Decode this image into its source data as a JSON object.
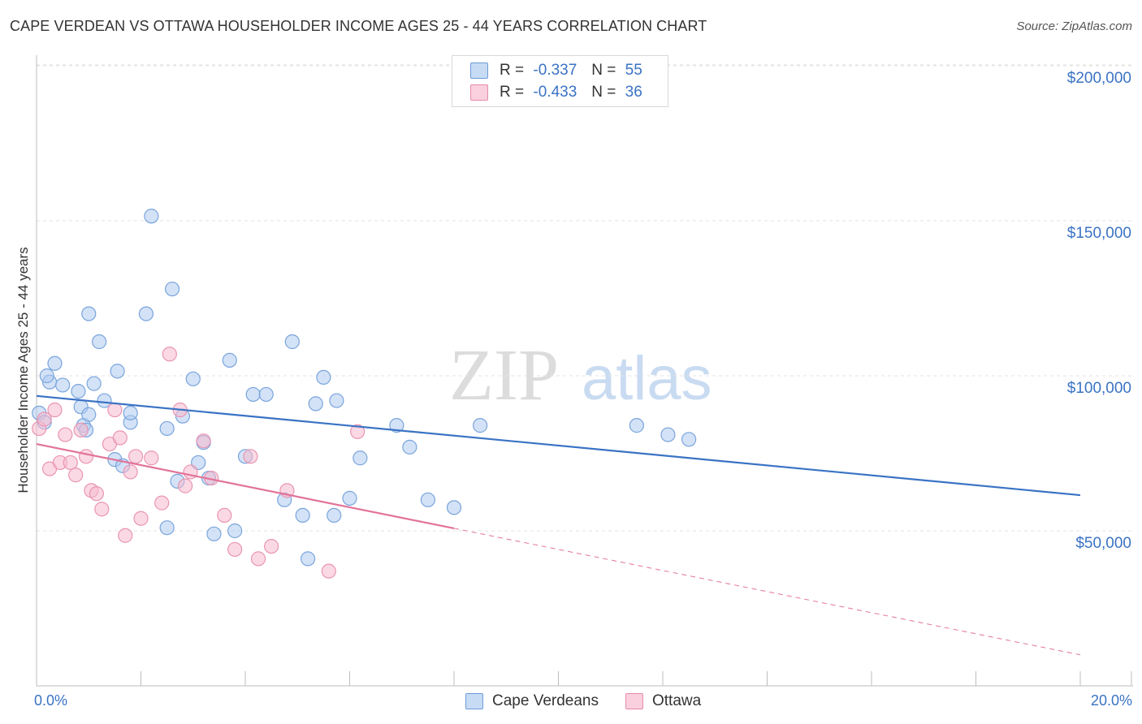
{
  "title": "CAPE VERDEAN VS OTTAWA HOUSEHOLDER INCOME AGES 25 - 44 YEARS CORRELATION CHART",
  "source": "Source: ZipAtlas.com",
  "watermark": {
    "zip": "ZIP",
    "atlas": "atlas"
  },
  "colors": {
    "blue": "#3a73c4",
    "blue_fill": "#aecbf0",
    "pink": "#e27399",
    "pink_fill": "#f7b9cd",
    "grid": "#e3e3e3"
  },
  "legend": {
    "rows": [
      {
        "r_label": "R =",
        "r_value": "-0.337",
        "n_label": "N =",
        "n_value": "55"
      },
      {
        "r_label": "R =",
        "r_value": "-0.433",
        "n_label": "N =",
        "n_value": "36"
      }
    ]
  },
  "bottom_legend": [
    "Cape Verdeans",
    "Ottawa"
  ],
  "chart_data": {
    "type": "scatter",
    "title": "CAPE VERDEAN VS OTTAWA HOUSEHOLDER INCOME AGES 25 - 44 YEARS CORRELATION CHART",
    "xlabel": "",
    "ylabel": "Householder Income Ages 25 - 44 years",
    "xlim": [
      0,
      20
    ],
    "ylim": [
      0,
      210000
    ],
    "x_tick_labels": [
      "0.0%",
      "20.0%"
    ],
    "y_ticks": [
      50000,
      100000,
      150000,
      200000
    ],
    "y_tick_labels": [
      "$50,000",
      "$100,000",
      "$150,000",
      "$200,000"
    ],
    "grid": true,
    "legend_position": "top-center",
    "series": [
      {
        "name": "Cape Verdeans",
        "color": "#3a73c4",
        "r": -0.337,
        "n": 55,
        "trend": {
          "x0": 0,
          "y0": 93500,
          "x1": 20,
          "y1": 61500,
          "dashed_from": null
        },
        "points": [
          [
            0.05,
            88000
          ],
          [
            0.15,
            85000
          ],
          [
            0.25,
            98000
          ],
          [
            0.35,
            104000
          ],
          [
            0.5,
            97000
          ],
          [
            0.2,
            100000
          ],
          [
            0.8,
            95000
          ],
          [
            0.85,
            90000
          ],
          [
            0.9,
            84000
          ],
          [
            1.0,
            87500
          ],
          [
            1.1,
            97500
          ],
          [
            1.2,
            111000
          ],
          [
            1.3,
            92000
          ],
          [
            1.5,
            73000
          ],
          [
            1.55,
            101500
          ],
          [
            1.65,
            71000
          ],
          [
            1.8,
            85000
          ],
          [
            1.8,
            88000
          ],
          [
            2.1,
            120000
          ],
          [
            2.2,
            151500
          ],
          [
            2.5,
            83000
          ],
          [
            2.6,
            128000
          ],
          [
            2.8,
            87000
          ],
          [
            2.7,
            66000
          ],
          [
            2.5,
            51000
          ],
          [
            3.0,
            99000
          ],
          [
            3.1,
            72000
          ],
          [
            3.2,
            78500
          ],
          [
            3.3,
            67000
          ],
          [
            3.4,
            49000
          ],
          [
            3.7,
            105000
          ],
          [
            3.8,
            50000
          ],
          [
            4.0,
            74000
          ],
          [
            4.15,
            94000
          ],
          [
            4.4,
            94000
          ],
          [
            4.75,
            60000
          ],
          [
            4.9,
            111000
          ],
          [
            5.1,
            55000
          ],
          [
            5.2,
            41000
          ],
          [
            5.35,
            91000
          ],
          [
            5.5,
            99500
          ],
          [
            5.7,
            55000
          ],
          [
            5.75,
            92000
          ],
          [
            6.0,
            60500
          ],
          [
            6.2,
            73500
          ],
          [
            6.9,
            84000
          ],
          [
            7.15,
            77000
          ],
          [
            7.5,
            60000
          ],
          [
            8.0,
            57500
          ],
          [
            8.5,
            84000
          ],
          [
            11.5,
            84000
          ],
          [
            12.1,
            81000
          ],
          [
            12.5,
            79500
          ],
          [
            0.95,
            82500
          ],
          [
            1.0,
            120000
          ]
        ]
      },
      {
        "name": "Ottawa",
        "color": "#e27399",
        "r": -0.433,
        "n": 36,
        "trend": {
          "x0": 0,
          "y0": 78000,
          "x1": 20,
          "y1": 10000,
          "dashed_from": 8.0
        },
        "points": [
          [
            0.05,
            83000
          ],
          [
            0.15,
            86000
          ],
          [
            0.25,
            70000
          ],
          [
            0.35,
            89000
          ],
          [
            0.45,
            72000
          ],
          [
            0.55,
            81000
          ],
          [
            0.65,
            72000
          ],
          [
            0.75,
            68000
          ],
          [
            0.85,
            82500
          ],
          [
            0.95,
            74000
          ],
          [
            1.05,
            63000
          ],
          [
            1.15,
            62000
          ],
          [
            1.25,
            57000
          ],
          [
            1.4,
            78000
          ],
          [
            1.5,
            89000
          ],
          [
            1.6,
            80000
          ],
          [
            1.7,
            48500
          ],
          [
            1.8,
            69000
          ],
          [
            1.9,
            74000
          ],
          [
            2.0,
            54000
          ],
          [
            2.2,
            73500
          ],
          [
            2.4,
            59000
          ],
          [
            2.55,
            107000
          ],
          [
            2.75,
            89000
          ],
          [
            2.85,
            64500
          ],
          [
            2.95,
            69000
          ],
          [
            3.2,
            79000
          ],
          [
            3.35,
            67000
          ],
          [
            3.6,
            55000
          ],
          [
            3.8,
            44000
          ],
          [
            4.1,
            74000
          ],
          [
            4.25,
            41000
          ],
          [
            4.5,
            45000
          ],
          [
            4.8,
            63000
          ],
          [
            5.6,
            37000
          ],
          [
            6.15,
            82000
          ]
        ]
      }
    ]
  }
}
